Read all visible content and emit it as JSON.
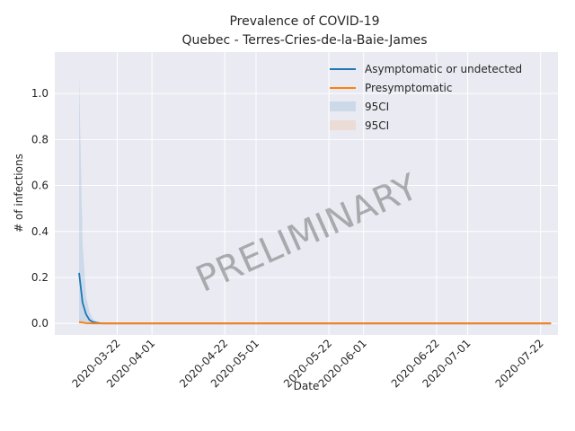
{
  "chart_data": {
    "type": "line",
    "title": "Prevalence of COVID-19",
    "subtitle": "Quebec - Terres-Cries-de-la-Baie-James",
    "xlabel": "Date",
    "ylabel": "# of infections",
    "watermark": "PRELIMINARY",
    "x_tick_labels": [
      "2020-03-22",
      "2020-04-01",
      "2020-04-22",
      "2020-05-01",
      "2020-05-22",
      "2020-06-01",
      "2020-06-22",
      "2020-07-01",
      "2020-07-22"
    ],
    "x_range": [
      "2020-03-04",
      "2020-07-27"
    ],
    "y_ticks": [
      "0.0",
      "0.2",
      "0.4",
      "0.6",
      "0.8",
      "1.0"
    ],
    "ylim": [
      -0.05,
      1.18
    ],
    "grid": true,
    "legend_position": "top-right",
    "background_color": "#eaeaf2",
    "series": [
      {
        "name": "Asymptomatic or undetected",
        "color": "#1f77b4",
        "x": [
          "2020-03-11",
          "2020-03-12",
          "2020-03-13",
          "2020-03-14",
          "2020-03-15",
          "2020-03-16",
          "2020-03-17",
          "2020-03-18",
          "2020-03-20",
          "2020-07-25"
        ],
        "values": [
          0.22,
          0.09,
          0.04,
          0.015,
          0.006,
          0.003,
          0.001,
          0.0,
          0.0,
          0.0
        ]
      },
      {
        "name": "Presymptomatic",
        "color": "#ff7f0e",
        "x": [
          "2020-03-11",
          "2020-03-12",
          "2020-03-13",
          "2020-03-15",
          "2020-07-25"
        ],
        "values": [
          0.005,
          0.004,
          0.001,
          0.0,
          0.0
        ]
      }
    ],
    "bands": [
      {
        "name": "95CI",
        "color": "#1f77b4",
        "x": [
          "2020-03-11",
          "2020-03-12",
          "2020-03-13",
          "2020-03-14",
          "2020-03-15",
          "2020-03-16",
          "2020-03-17",
          "2020-03-18",
          "2020-03-20",
          "2020-07-25"
        ],
        "upper": [
          1.08,
          0.35,
          0.12,
          0.05,
          0.02,
          0.01,
          0.005,
          0.002,
          0.0,
          0.0
        ],
        "lower": [
          0.0,
          0.0,
          0.0,
          0.0,
          0.0,
          0.0,
          0.0,
          0.0,
          0.0,
          0.0
        ]
      },
      {
        "name": "95CI",
        "color": "#ff7f0e",
        "x": [
          "2020-03-11",
          "2020-03-12",
          "2020-03-14",
          "2020-07-25"
        ],
        "upper": [
          0.02,
          0.01,
          0.0,
          0.0
        ],
        "lower": [
          0.0,
          0.0,
          0.0,
          0.0
        ]
      }
    ]
  }
}
